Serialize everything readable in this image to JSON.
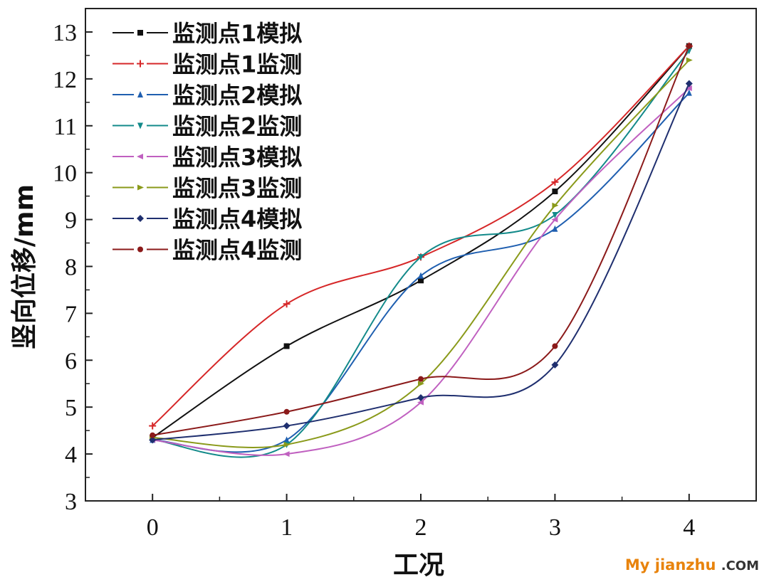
{
  "chart_data": {
    "type": "line",
    "xlabel": "工况",
    "ylabel": "竖向位移/mm",
    "x": [
      0,
      1,
      2,
      3,
      4
    ],
    "xlim": [
      -0.5,
      4.5
    ],
    "ylim": [
      3,
      13.5
    ],
    "xticks": [
      0,
      1,
      2,
      3,
      4
    ],
    "yticks": [
      3,
      4,
      5,
      6,
      7,
      8,
      9,
      10,
      11,
      12,
      13
    ],
    "grid": false,
    "legend_position": "top-left",
    "series": [
      {
        "name": "监测点1模拟",
        "color": "#111111",
        "dash": "solid",
        "marker": "square",
        "values": [
          4.35,
          6.3,
          7.7,
          9.6,
          12.7
        ]
      },
      {
        "name": "监测点1监测",
        "color": "#d62728",
        "dash": "solid",
        "marker": "plus",
        "values": [
          4.6,
          7.2,
          8.2,
          9.8,
          12.7
        ]
      },
      {
        "name": "监测点2模拟",
        "color": "#1f5fb0",
        "dash": "solid",
        "marker": "triangle-up",
        "values": [
          4.3,
          4.3,
          7.8,
          8.8,
          11.7
        ]
      },
      {
        "name": "监测点2监测",
        "color": "#138a8a",
        "dash": "solid",
        "marker": "triangle-down",
        "values": [
          4.3,
          4.2,
          8.2,
          9.1,
          12.6
        ]
      },
      {
        "name": "监测点3模拟",
        "color": "#c060c0",
        "dash": "solid",
        "marker": "triangle-left",
        "values": [
          4.3,
          4.0,
          5.1,
          9.0,
          11.8
        ]
      },
      {
        "name": "监测点3监测",
        "color": "#8a9a1a",
        "dash": "solid",
        "marker": "triangle-right",
        "values": [
          4.35,
          4.2,
          5.5,
          9.3,
          12.4
        ]
      },
      {
        "name": "监测点4模拟",
        "color": "#1f2f6f",
        "dash": "solid",
        "marker": "diamond",
        "values": [
          4.3,
          4.6,
          5.2,
          5.9,
          11.9
        ]
      },
      {
        "name": "监测点4监测",
        "color": "#8b1a1a",
        "dash": "solid",
        "marker": "circle",
        "values": [
          4.4,
          4.9,
          5.6,
          6.3,
          12.7
        ]
      }
    ]
  },
  "watermark": {
    "part1": "My jianzhu",
    "part2": ".COM"
  }
}
